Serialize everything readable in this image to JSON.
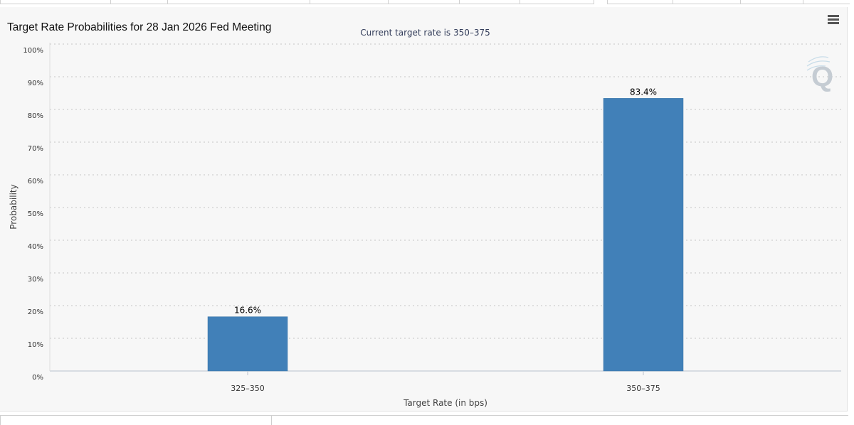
{
  "chart": {
    "title": "Target Rate Probabilities for 28 Jan 2026 Fed Meeting",
    "subtitle": "Current target rate is 350–375",
    "menu_icon": "hamburger-menu-icon",
    "watermark_icon": "q-watermark-icon"
  },
  "chart_data": {
    "type": "bar",
    "title": "Target Rate Probabilities for 28 Jan 2026 Fed Meeting",
    "subtitle": "Current target rate is 350–375",
    "xlabel": "Target Rate (in bps)",
    "ylabel": "Probability",
    "categories": [
      "325–350",
      "350–375"
    ],
    "values": [
      16.6,
      83.4
    ],
    "data_labels": [
      "16.6%",
      "83.4%"
    ],
    "ylim": [
      0,
      100
    ],
    "yticks": [
      0,
      10,
      20,
      30,
      40,
      50,
      60,
      70,
      80,
      90,
      100
    ],
    "ytick_labels": [
      "0%",
      "10%",
      "20%",
      "30%",
      "40%",
      "50%",
      "60%",
      "70%",
      "80%",
      "90%",
      "100%"
    ],
    "grid": true,
    "legend": "none",
    "bar_color": "#4180b8"
  }
}
